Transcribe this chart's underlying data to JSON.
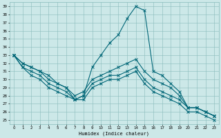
{
  "xlabel": "Humidex (Indice chaleur)",
  "bg_color": "#cce8e8",
  "grid_color": "#88bbbb",
  "line_color": "#006677",
  "xlim": [
    -0.5,
    23.5
  ],
  "ylim": [
    24.5,
    39.5
  ],
  "yticks": [
    25,
    26,
    27,
    28,
    29,
    30,
    31,
    32,
    33,
    34,
    35,
    36,
    37,
    38,
    39
  ],
  "xticks": [
    0,
    1,
    2,
    3,
    4,
    5,
    6,
    7,
    8,
    9,
    10,
    11,
    12,
    13,
    14,
    15,
    16,
    17,
    18,
    19,
    20,
    21,
    22,
    23
  ],
  "line1": [
    33.0,
    32.0,
    31.5,
    31.0,
    30.5,
    29.5,
    29.0,
    27.5,
    28.0,
    31.5,
    33.0,
    34.5,
    35.5,
    37.5,
    39.0,
    38.5,
    31.0,
    30.5,
    29.5,
    28.5,
    26.5,
    26.5,
    26.0,
    25.5
  ],
  "line2": [
    33.0,
    32.0,
    31.5,
    31.0,
    30.0,
    29.5,
    29.0,
    28.0,
    28.5,
    30.0,
    30.5,
    31.0,
    31.5,
    32.0,
    32.5,
    31.0,
    30.0,
    29.5,
    29.0,
    28.0,
    26.5,
    26.5,
    26.0,
    25.5
  ],
  "line3": [
    33.0,
    31.5,
    31.0,
    30.5,
    29.5,
    29.0,
    28.5,
    27.5,
    28.0,
    29.5,
    30.0,
    30.5,
    30.5,
    31.0,
    31.5,
    30.0,
    29.0,
    28.5,
    28.0,
    27.5,
    26.5,
    26.5,
    26.0,
    25.5
  ],
  "line4": [
    33.0,
    31.5,
    30.5,
    30.0,
    29.0,
    28.5,
    28.0,
    27.5,
    27.5,
    29.0,
    29.5,
    30.0,
    30.0,
    30.5,
    31.0,
    29.5,
    28.5,
    28.0,
    27.5,
    27.0,
    26.0,
    26.0,
    25.5,
    25.0
  ]
}
